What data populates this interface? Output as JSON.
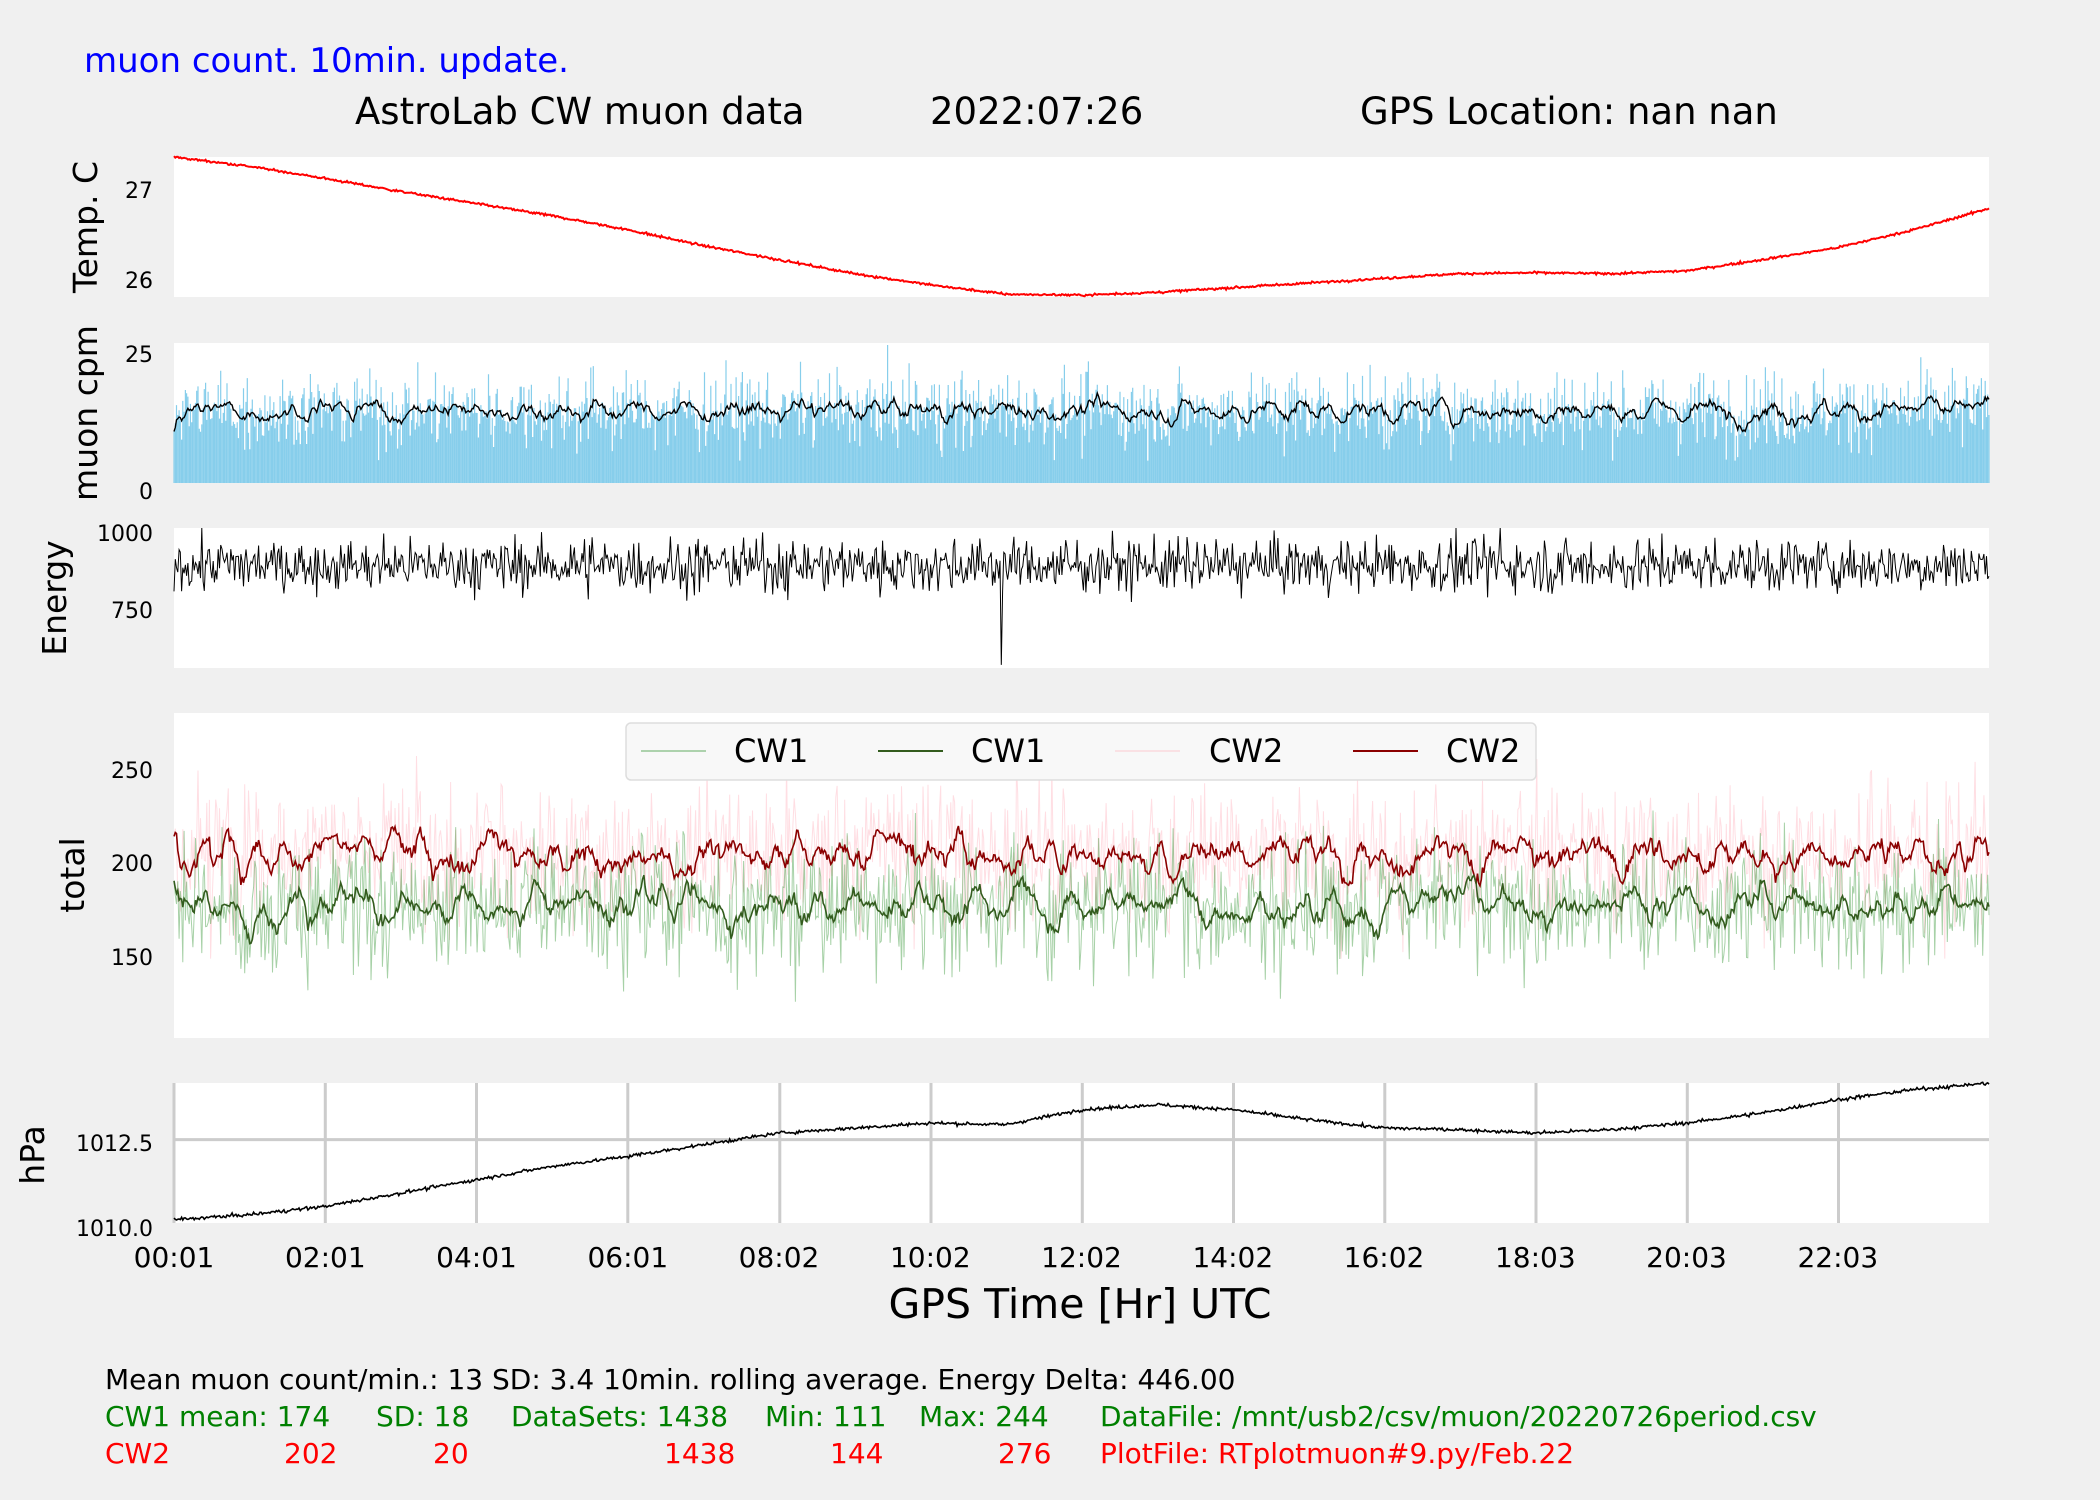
{
  "header": {
    "update_note": "muon count.  10min. update.",
    "title": "AstroLab CW muon data",
    "date": "2022:07:26",
    "gps": "GPS Location: nan   nan"
  },
  "xaxis": {
    "label": "GPS Time  [Hr] UTC",
    "ticks": [
      "00:01",
      "02:01",
      "04:01",
      "06:01",
      "08:02",
      "10:02",
      "12:02",
      "14:02",
      "16:02",
      "18:03",
      "20:03",
      "22:03"
    ]
  },
  "colors": {
    "temp": "#ff0000",
    "muon_bar": "#87ceeb",
    "cw1_raw": "#228b22",
    "cw1_avg": "#335c1e",
    "cw2_raw": "#ffb6c1",
    "cw2_avg": "#8b0000",
    "black": "#000000",
    "note_blue": "#0000ff",
    "stat_green": "#008000",
    "stat_red": "#ff0000"
  },
  "chart_data": [
    {
      "type": "line",
      "ylabel": "Temp. C",
      "yticks": [
        "26",
        "27"
      ],
      "ylim": [
        25.8,
        27.3
      ],
      "x_hours": [
        0,
        1,
        2,
        3,
        4,
        5,
        6,
        7,
        8,
        9,
        10,
        11,
        12,
        13,
        14,
        15,
        16,
        17,
        18,
        19,
        20,
        21,
        22,
        23,
        24
      ],
      "values": [
        27.3,
        27.2,
        27.07,
        26.93,
        26.8,
        26.67,
        26.52,
        26.35,
        26.2,
        26.05,
        25.93,
        25.83,
        25.82,
        25.85,
        25.9,
        25.95,
        26.0,
        26.05,
        26.06,
        26.05,
        26.08,
        26.2,
        26.33,
        26.52,
        26.75
      ]
    },
    {
      "type": "bar",
      "ylabel": "muon cpm",
      "yticks": [
        "0",
        "25"
      ],
      "ylim": [
        0,
        25
      ],
      "series": [
        {
          "name": "per minute",
          "mean": 13,
          "sd": 3.4
        },
        {
          "name": "10min. rolling average",
          "mean": 13
        }
      ]
    },
    {
      "type": "line",
      "ylabel": "Energy",
      "yticks": [
        "750",
        "1000"
      ],
      "ylim": [
        550,
        1000
      ],
      "mean": 880,
      "delta": 446.0
    },
    {
      "type": "line",
      "ylabel": "total",
      "yticks": [
        "150",
        "200",
        "250"
      ],
      "ylim": [
        100,
        280
      ],
      "legend": [
        "CW1",
        "CW1",
        "CW2",
        "CW2"
      ],
      "legend_position": "top-center",
      "series": [
        {
          "name": "CW1",
          "mean": 174,
          "sd": 18,
          "min": 111,
          "max": 244,
          "datasets": 1438
        },
        {
          "name": "CW2",
          "mean": 202,
          "sd": 20,
          "min": 144,
          "max": 276,
          "datasets": 1438
        }
      ]
    },
    {
      "type": "line",
      "ylabel": "hPa",
      "yticks": [
        "1010.0",
        "1012.5"
      ],
      "ylim": [
        1010.0,
        1014.2
      ],
      "grid": true,
      "x_hours": [
        0,
        1,
        2,
        3,
        4,
        5,
        6,
        7,
        8,
        9,
        10,
        11,
        12,
        13,
        14,
        15,
        16,
        17,
        18,
        19,
        20,
        21,
        22,
        23,
        24
      ],
      "values": [
        1010.1,
        1010.25,
        1010.5,
        1010.9,
        1011.3,
        1011.7,
        1012.0,
        1012.35,
        1012.7,
        1012.85,
        1013.0,
        1012.95,
        1013.4,
        1013.55,
        1013.4,
        1013.1,
        1012.85,
        1012.8,
        1012.7,
        1012.8,
        1013.0,
        1013.3,
        1013.7,
        1014.0,
        1014.2
      ]
    }
  ],
  "stats": {
    "line1": "Mean muon count/min.: 13  SD: 3.4   10min. rolling average.    Energy Delta:  446.00",
    "cw1": {
      "label": "CW1 mean: 174",
      "sd": "SD: 18",
      "datasets": "DataSets: 1438",
      "min": "Min: 111",
      "max": "Max: 244",
      "file": "DataFile: /mnt/usb2/csv/muon/20220726period.csv"
    },
    "cw2": {
      "label": "CW2",
      "mean": "202",
      "sd": "20",
      "datasets": "1438",
      "min": "144",
      "max": "276",
      "file": "PlotFile: RTplotmuon#9.py/Feb.22"
    }
  }
}
